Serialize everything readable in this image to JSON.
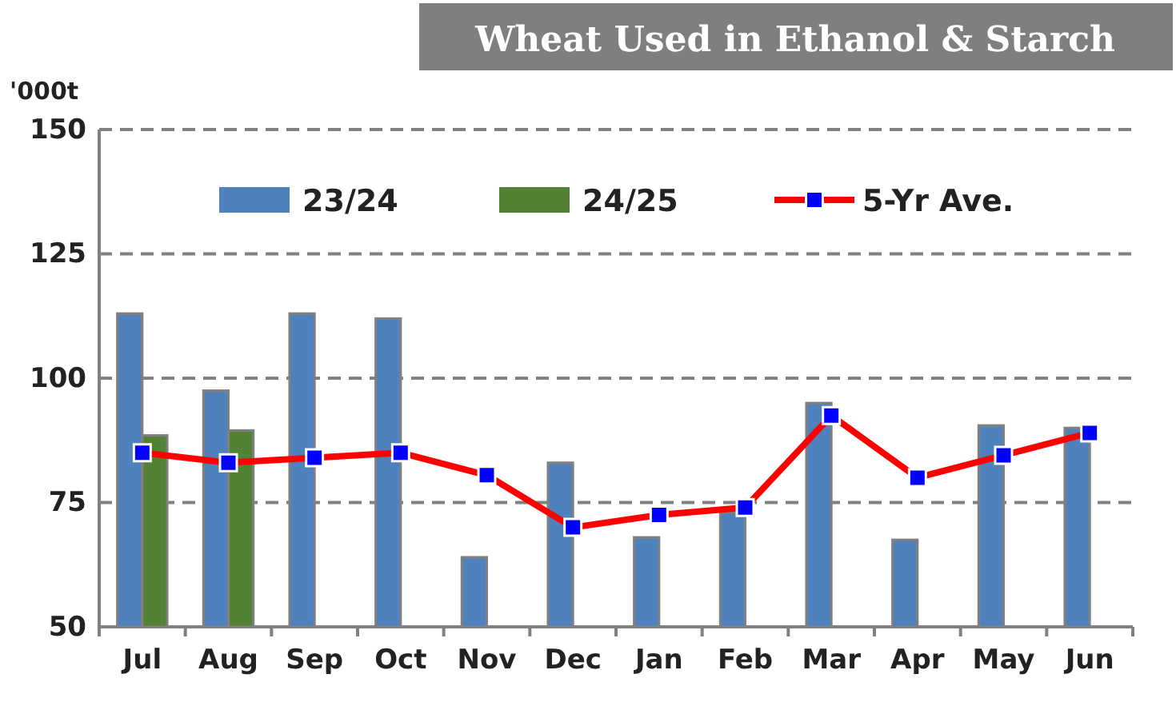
{
  "chart_data": {
    "type": "bar",
    "title": "Wheat Used in Ethanol & Starch",
    "ylabel": "'000t",
    "categories": [
      "Jul",
      "Aug",
      "Sep",
      "Oct",
      "Nov",
      "Dec",
      "Jan",
      "Feb",
      "Mar",
      "Apr",
      "May",
      "Jun"
    ],
    "series": [
      {
        "name": "23/24",
        "color": "#4f81bd",
        "values": [
          113,
          97.5,
          113,
          112,
          64,
          83,
          68,
          73,
          95,
          67.5,
          90.5,
          90
        ]
      },
      {
        "name": "24/25",
        "color": "#548235",
        "values": [
          88.5,
          89.5,
          null,
          null,
          null,
          null,
          null,
          null,
          null,
          null,
          null,
          null
        ]
      },
      {
        "name": "5-Yr Ave.",
        "type": "line",
        "color": "#ff0000",
        "values": [
          85,
          83,
          84,
          85,
          80.5,
          70,
          72.5,
          74,
          92.5,
          80,
          84.5,
          89
        ]
      }
    ],
    "ylim": [
      50,
      150
    ],
    "yticks": [
      50,
      75,
      100,
      125,
      150
    ],
    "grid": "y",
    "legend": "top",
    "marker": "square"
  }
}
